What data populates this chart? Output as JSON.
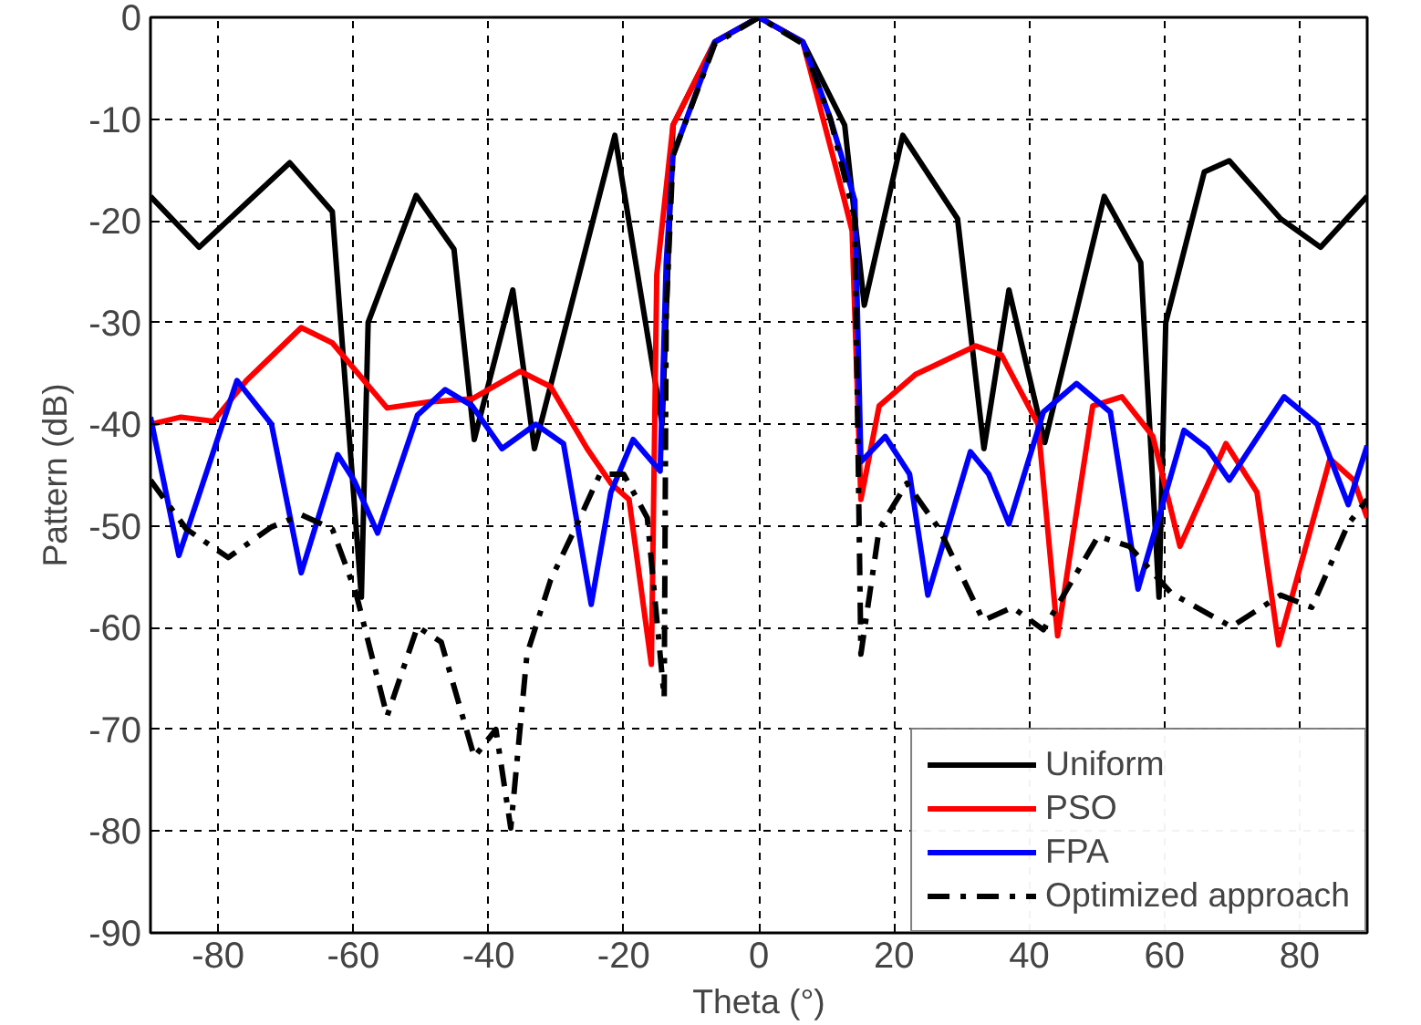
{
  "chart_data": {
    "type": "line",
    "xlabel": "Theta (°)",
    "ylabel": "Pattern (dB)",
    "xlim": [
      -90,
      90
    ],
    "ylim": [
      -90,
      0
    ],
    "xticks": [
      -80,
      -60,
      -40,
      -20,
      0,
      20,
      40,
      60,
      80
    ],
    "yticks": [
      -90,
      -80,
      -70,
      -60,
      -50,
      -40,
      -30,
      -20,
      -10,
      0
    ],
    "grid": true,
    "legend": "bottom right",
    "marker": "none",
    "series": [
      {
        "name": "Uniform",
        "color": "#000000",
        "line_style": "solid",
        "x": [
          -90,
          -82.8,
          -69.4,
          -63.1,
          -58.8,
          -57.8,
          -50.7,
          -45.1,
          -42.1,
          -36.4,
          -33.2,
          -21.3,
          -14.3,
          -12.7,
          -6.5,
          0,
          6.5,
          12.7,
          15.6,
          21.3,
          29.4,
          33.3,
          37.0,
          42.3,
          51.1,
          56.5,
          59.2,
          60.2,
          65.9,
          69.6,
          77.2,
          83.1,
          90
        ],
        "values": [
          -17.6,
          -22.6,
          -14.3,
          -19.1,
          -57,
          -30,
          -17.5,
          -22.8,
          -41.5,
          -26.8,
          -42.4,
          -11.6,
          -40,
          -10.6,
          -2.4,
          0,
          -2.4,
          -10.6,
          -28.3,
          -11.6,
          -19.8,
          -42.4,
          -26.8,
          -41.8,
          -17.6,
          -24.1,
          -57,
          -30,
          -15.2,
          -14.1,
          -19.8,
          -22.6,
          -17.6
        ]
      },
      {
        "name": "PSO",
        "color": "#ff0000",
        "line_style": "solid",
        "x": [
          -90,
          -85.5,
          -80.7,
          -75.8,
          -67.7,
          -63.1,
          -55.0,
          -48.8,
          -42.4,
          -35.3,
          -30.8,
          -25.4,
          -21.9,
          -19.2,
          -15.9,
          -15.1,
          -12.7,
          -6.5,
          0,
          6.5,
          12.4,
          13.8,
          15.1,
          17.8,
          23.2,
          32.1,
          35.9,
          41.3,
          44.2,
          49.4,
          53.7,
          58.3,
          62.3,
          69.1,
          73.7,
          76.9,
          84.5,
          88,
          90
        ],
        "values": [
          -40,
          -39.3,
          -39.7,
          -35.7,
          -30.5,
          -32.0,
          -38.4,
          -37.8,
          -37.5,
          -34.8,
          -36.3,
          -42.4,
          -45.8,
          -47.4,
          -63.6,
          -25.3,
          -10.6,
          -2.4,
          0,
          -2.4,
          -17.3,
          -21,
          -47.4,
          -38.2,
          -35.1,
          -32.3,
          -33.2,
          -40.0,
          -60.8,
          -38.2,
          -37.3,
          -41.2,
          -52.0,
          -41.9,
          -46.7,
          -61.7,
          -43.4,
          -45.5,
          -49.2
        ]
      },
      {
        "name": "FPA",
        "color": "#0000ff",
        "line_style": "solid",
        "x": [
          -90,
          -85.8,
          -77.2,
          -72.1,
          -67.7,
          -62.3,
          -59.9,
          -56.4,
          -50.5,
          -46.4,
          -42.4,
          -38.0,
          -33.0,
          -28.9,
          -24.8,
          -21.9,
          -18.6,
          -14.6,
          -13.7,
          -12.7,
          -6.5,
          0,
          6.5,
          10.6,
          14.2,
          15.1,
          18.7,
          22.3,
          25.0,
          31.3,
          34.0,
          37.0,
          42.1,
          47.0,
          52.0,
          56.1,
          62.9,
          66.4,
          69.6,
          77.7,
          82.6,
          87.2,
          90
        ],
        "values": [
          -39.3,
          -52.9,
          -35.7,
          -40,
          -54.6,
          -43.0,
          -45.5,
          -50.7,
          -39.1,
          -36.6,
          -38.2,
          -42.4,
          -40,
          -41.9,
          -57.7,
          -46.7,
          -41.5,
          -44.6,
          -24.1,
          -13.6,
          -2.4,
          0,
          -2.4,
          -10,
          -18.0,
          -43.7,
          -41.2,
          -44.9,
          -56.8,
          -42.7,
          -44.9,
          -49.8,
          -38.8,
          -36.0,
          -38.8,
          -56.2,
          -40.6,
          -42.4,
          -45.5,
          -37.3,
          -40.0,
          -47.9,
          -42.1
        ]
      },
      {
        "name": "Optimized approach",
        "color": "#000000",
        "line_style": "dashdot",
        "x": [
          -90,
          -84.7,
          -78.5,
          -72.1,
          -67.7,
          -63.1,
          -59.6,
          -55.0,
          -50.5,
          -47.0,
          -42.1,
          -38.9,
          -36.7,
          -34.3,
          -30.8,
          -27.5,
          -23.5,
          -20,
          -16.5,
          -14.0,
          -13.7,
          -12.7,
          -6.5,
          0,
          6.5,
          10.6,
          14.2,
          15.1,
          17.8,
          21.9,
          26.7,
          33.2,
          37.5,
          42.1,
          50.2,
          54.8,
          61.0,
          69.9,
          77.2,
          81.8,
          87.2,
          90
        ],
        "values": [
          -45.5,
          -50.3,
          -53.1,
          -50.1,
          -48.9,
          -50.3,
          -56.6,
          -68.7,
          -59.9,
          -61.4,
          -72.7,
          -70,
          -79.7,
          -62.6,
          -55.3,
          -50.7,
          -44.9,
          -44.9,
          -49.2,
          -66.9,
          -29,
          -13.6,
          -2.6,
          0,
          -2.6,
          -10,
          -19.8,
          -62.6,
          -50.3,
          -45.8,
          -50.3,
          -59.3,
          -58.0,
          -60.2,
          -51.0,
          -52.0,
          -56.6,
          -59.9,
          -56.8,
          -58.0,
          -49.8,
          -47.4
        ]
      }
    ]
  }
}
